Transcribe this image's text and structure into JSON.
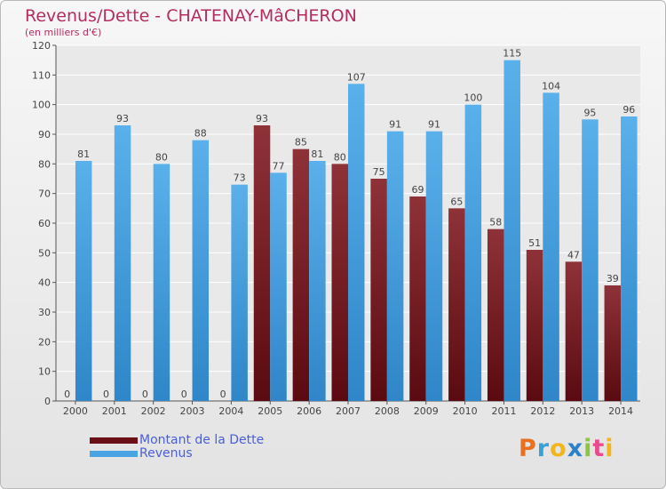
{
  "title": "Revenus/Dette - CHATENAY-MâCHERON",
  "subtitle": "(en milliers d'€)",
  "chart_data": {
    "type": "bar",
    "categories": [
      "2000",
      "2001",
      "2002",
      "2003",
      "2004",
      "2005",
      "2006",
      "2007",
      "2008",
      "2009",
      "2010",
      "2011",
      "2012",
      "2013",
      "2014"
    ],
    "series": [
      {
        "name": "Montant de la Dette",
        "color": "#7a1a22",
        "values": [
          0,
          0,
          0,
          0,
          0,
          93,
          85,
          80,
          75,
          69,
          65,
          58,
          51,
          47,
          39
        ]
      },
      {
        "name": "Revenus",
        "color": "#4aa3e2",
        "values": [
          81,
          93,
          80,
          88,
          73,
          77,
          81,
          107,
          91,
          91,
          100,
          115,
          104,
          95,
          96
        ]
      }
    ],
    "ylim": [
      0,
      120
    ],
    "yticks": [
      0,
      10,
      20,
      30,
      40,
      50,
      60,
      70,
      80,
      90,
      100,
      110,
      120
    ],
    "grid": true,
    "legend": "bottom-left"
  },
  "legend": {
    "items": [
      {
        "label": "Montant de la Dette",
        "color": "#6b0f16"
      },
      {
        "label": "Revenus",
        "color": "#4aa3e2"
      }
    ]
  },
  "logo": {
    "letters": [
      "P",
      "r",
      "o",
      "x",
      "i",
      "t",
      "i"
    ],
    "colors": [
      "#e8701e",
      "#3aa0d8",
      "#f2b51c",
      "#2d7fc6",
      "#8cc63e",
      "#e94a8c",
      "#f2b51c"
    ]
  }
}
